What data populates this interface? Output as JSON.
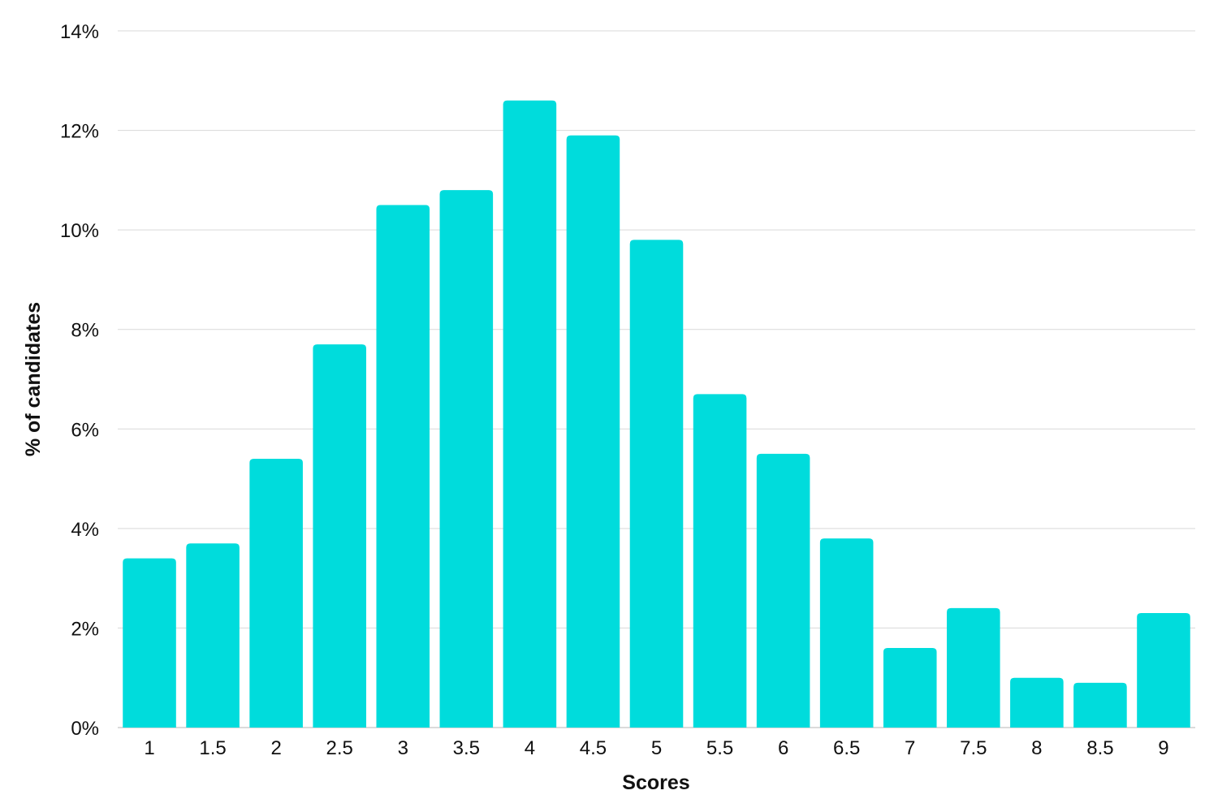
{
  "chart_data": {
    "type": "bar",
    "title": "",
    "xlabel": "Scores",
    "ylabel": "% of candidates",
    "categories": [
      "1",
      "1.5",
      "2",
      "2.5",
      "3",
      "3.5",
      "4",
      "4.5",
      "5",
      "5.5",
      "6",
      "6.5",
      "7",
      "7.5",
      "8",
      "8.5",
      "9"
    ],
    "values": [
      3.4,
      3.7,
      5.4,
      7.7,
      10.5,
      10.8,
      12.6,
      11.9,
      9.8,
      6.7,
      5.5,
      3.8,
      1.6,
      2.4,
      1.0,
      0.9,
      2.3
    ],
    "ylim": [
      0,
      14
    ],
    "yticks": [
      "0%",
      "2%",
      "4%",
      "6%",
      "8%",
      "10%",
      "12%",
      "14%"
    ],
    "ytick_values": [
      0,
      2,
      4,
      6,
      8,
      10,
      12,
      14
    ],
    "grid": true,
    "legend": "none",
    "bar_color": "#00DCDC"
  }
}
